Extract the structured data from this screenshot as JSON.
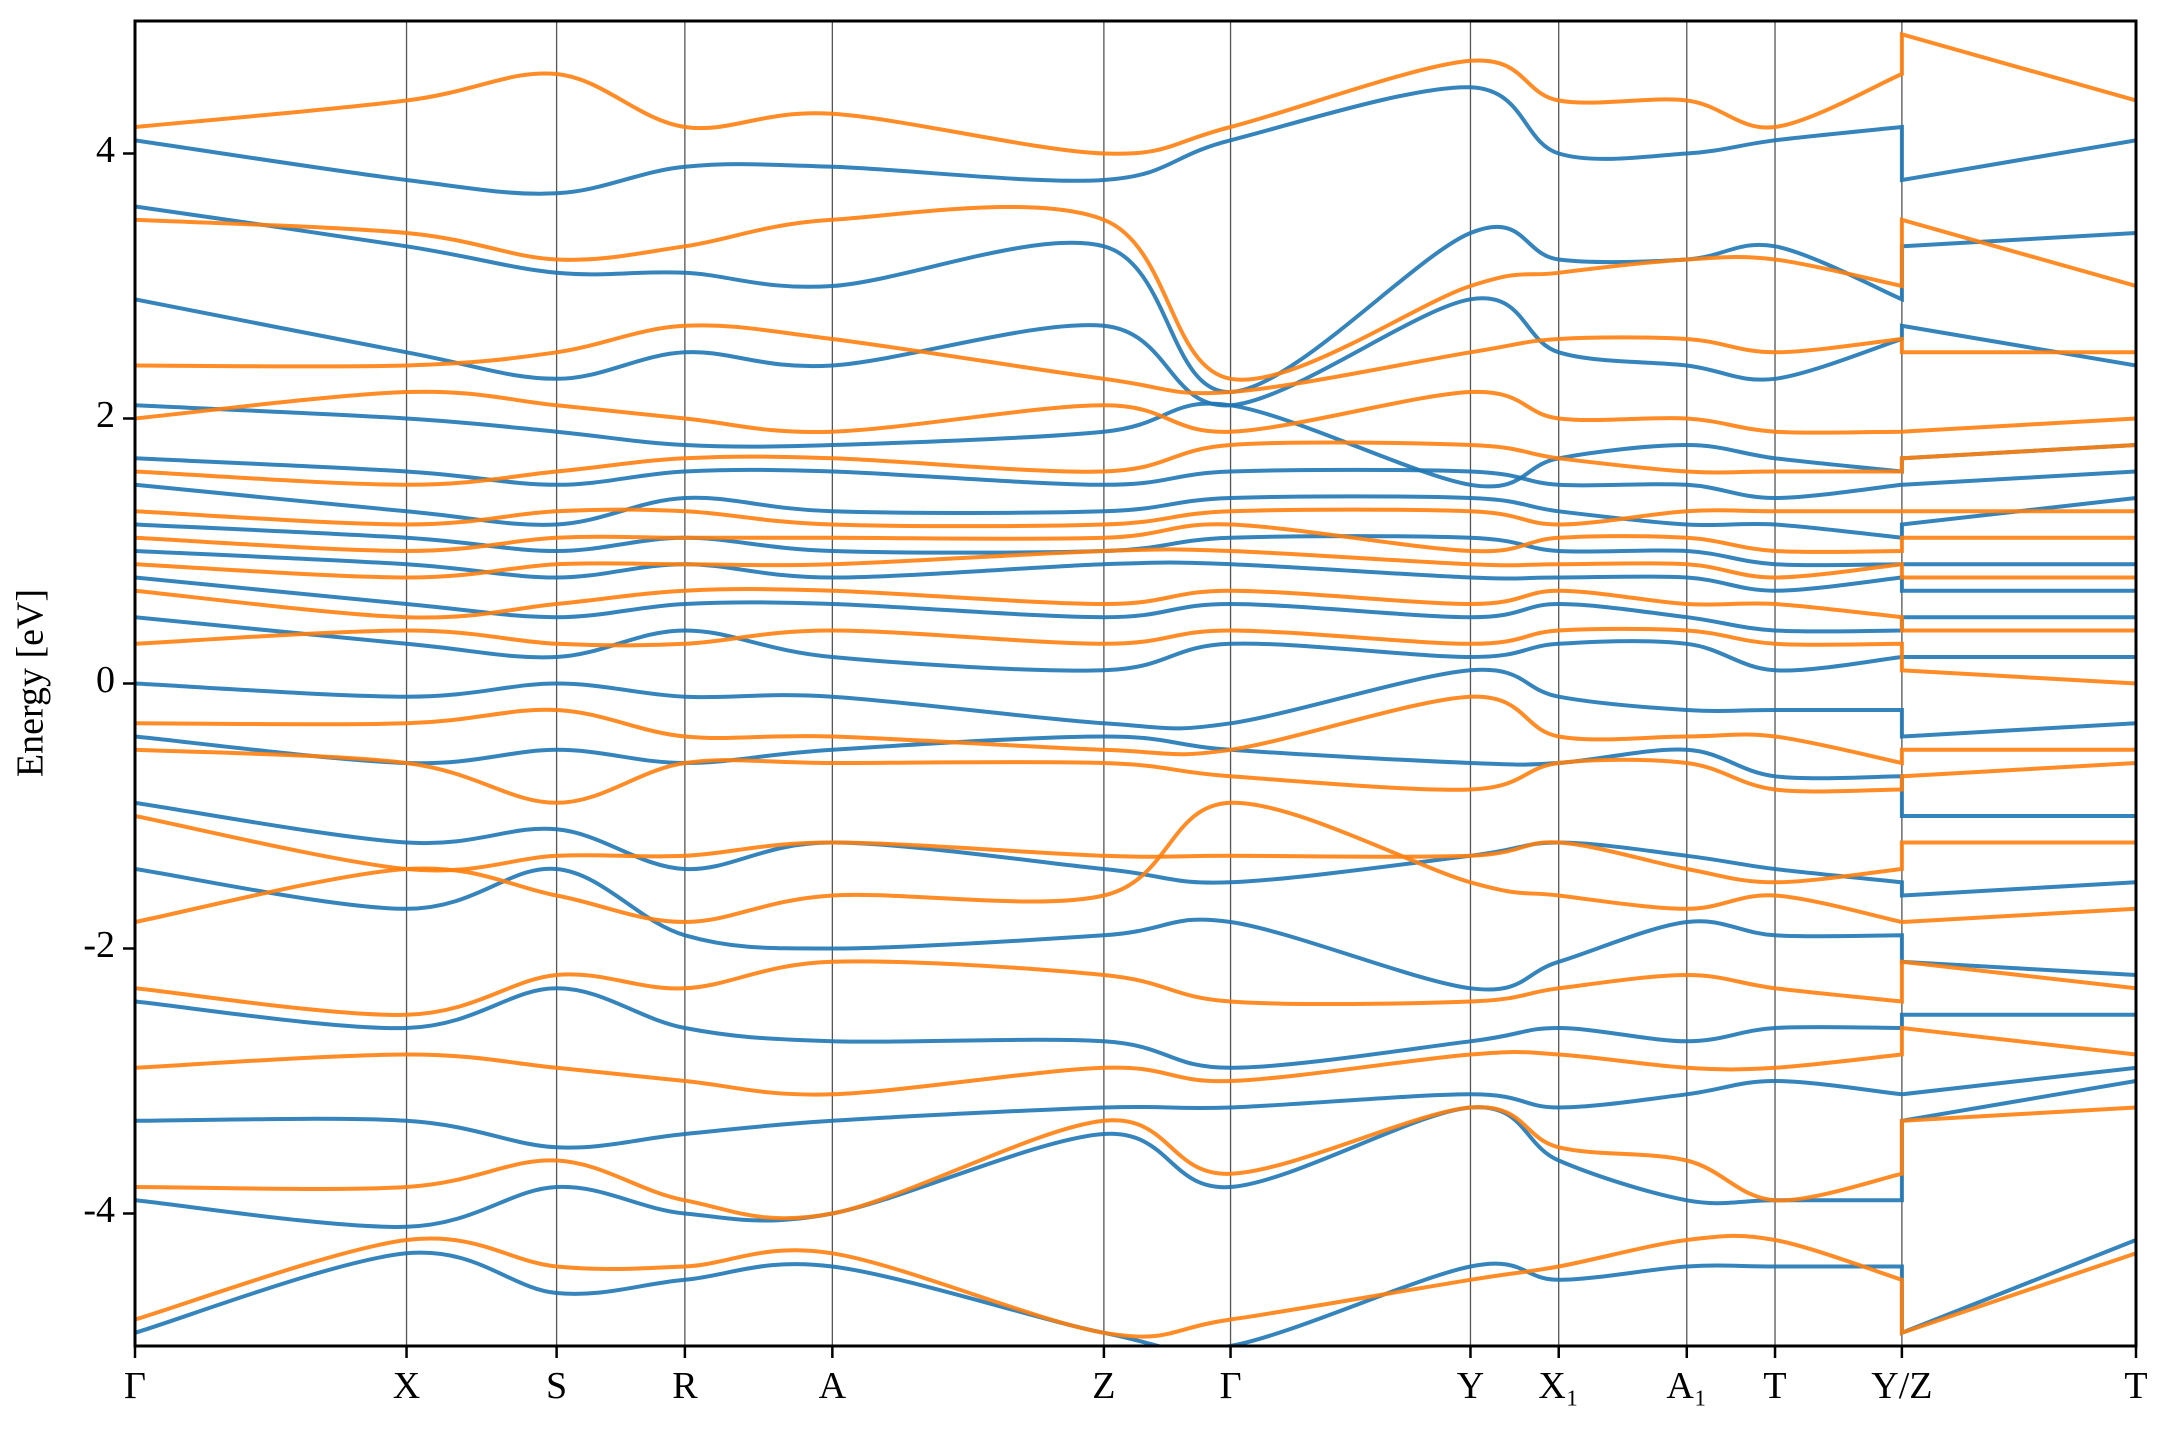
{
  "chart_data": {
    "type": "line",
    "ylabel": "Energy [eV]",
    "xlim": [
      0,
      1
    ],
    "ylim": [
      -5,
      5
    ],
    "yticks": [
      -4,
      -2,
      0,
      2,
      4
    ],
    "xticks": [
      {
        "value": 0,
        "label": "Γ"
      },
      {
        "value": 0.1357,
        "label": "X"
      },
      {
        "value": 0.2107,
        "label": "S"
      },
      {
        "value": 0.2748,
        "label": "R"
      },
      {
        "value": 0.3485,
        "label": "A"
      },
      {
        "value": 0.4842,
        "label": "Z"
      },
      {
        "value": 0.5475,
        "label": "Γ"
      },
      {
        "value": 0.6674,
        "label": "Y"
      },
      {
        "value": 0.7115,
        "label": "X₁"
      },
      {
        "value": 0.7755,
        "label": "A₁"
      },
      {
        "value": 0.8196,
        "label": "T"
      },
      {
        "value": 0.883,
        "label": "Y/Z"
      },
      {
        "value": 1,
        "label": "T"
      }
    ],
    "grid": true,
    "x": [
      0,
      0.1357,
      0.2107,
      0.2748,
      0.3485,
      0.4842,
      0.5475,
      0.6674,
      0.7115,
      0.7755,
      0.8196,
      0.883,
      0.883,
      1
    ],
    "series": [
      {
        "color": "#1f77b4",
        "bands": [
          [
            -4.9,
            -4.3,
            -4.6,
            -4.5,
            -4.4,
            -4.9,
            -5.0,
            -4.4,
            -4.5,
            -4.4,
            -4.4,
            -4.4,
            -4.9,
            -4.2
          ],
          [
            -3.9,
            -4.1,
            -3.8,
            -4.0,
            -4.0,
            -3.4,
            -3.8,
            -3.2,
            -3.6,
            -3.9,
            -3.9,
            -3.9,
            -3.3,
            -3.0
          ],
          [
            -3.3,
            -3.3,
            -3.5,
            -3.4,
            -3.3,
            -3.2,
            -3.2,
            -3.1,
            -3.2,
            -3.1,
            -3.0,
            -3.1,
            -3.1,
            -2.9
          ],
          [
            -2.4,
            -2.6,
            -2.3,
            -2.6,
            -2.7,
            -2.7,
            -2.9,
            -2.7,
            -2.6,
            -2.7,
            -2.6,
            -2.6,
            -2.5,
            -2.5
          ],
          [
            -1.4,
            -1.7,
            -1.4,
            -1.9,
            -2.0,
            -1.9,
            -1.8,
            -2.3,
            -2.1,
            -1.8,
            -1.9,
            -1.9,
            -2.1,
            -2.2
          ],
          [
            -0.9,
            -1.2,
            -1.1,
            -1.4,
            -1.2,
            -1.4,
            -1.5,
            -1.3,
            -1.2,
            -1.3,
            -1.4,
            -1.5,
            -1.6,
            -1.5
          ],
          [
            -0.4,
            -0.6,
            -0.5,
            -0.6,
            -0.5,
            -0.4,
            -0.5,
            -0.6,
            -0.6,
            -0.5,
            -0.7,
            -0.7,
            -1.0,
            -1.0
          ],
          [
            0.0,
            -0.1,
            0.0,
            -0.1,
            -0.1,
            -0.3,
            -0.3,
            0.1,
            -0.1,
            -0.2,
            -0.2,
            -0.2,
            -0.4,
            -0.3
          ],
          [
            0.5,
            0.3,
            0.2,
            0.4,
            0.2,
            0.1,
            0.3,
            0.2,
            0.3,
            0.3,
            0.1,
            0.2,
            0.2,
            0.2
          ],
          [
            0.8,
            0.6,
            0.5,
            0.6,
            0.6,
            0.5,
            0.6,
            0.5,
            0.6,
            0.5,
            0.4,
            0.4,
            0.5,
            0.5
          ],
          [
            1.0,
            0.9,
            0.8,
            0.9,
            0.8,
            0.9,
            0.9,
            0.8,
            0.8,
            0.8,
            0.7,
            0.8,
            0.7,
            0.7
          ],
          [
            1.2,
            1.1,
            1.0,
            1.1,
            1.0,
            1.0,
            1.1,
            1.1,
            1.0,
            1.0,
            0.9,
            0.9,
            0.9,
            0.9
          ],
          [
            1.5,
            1.3,
            1.2,
            1.4,
            1.3,
            1.3,
            1.4,
            1.4,
            1.3,
            1.2,
            1.2,
            1.1,
            1.2,
            1.4
          ],
          [
            1.7,
            1.6,
            1.5,
            1.6,
            1.6,
            1.5,
            1.6,
            1.6,
            1.5,
            1.5,
            1.4,
            1.5,
            1.5,
            1.6
          ],
          [
            2.1,
            2.0,
            1.9,
            1.8,
            1.8,
            1.9,
            2.1,
            1.5,
            1.7,
            1.8,
            1.7,
            1.6,
            1.7,
            1.8
          ],
          [
            2.9,
            2.5,
            2.3,
            2.5,
            2.4,
            2.7,
            2.1,
            2.9,
            2.5,
            2.4,
            2.3,
            2.6,
            2.7,
            2.4
          ],
          [
            3.6,
            3.3,
            3.1,
            3.1,
            3.0,
            3.3,
            2.2,
            3.4,
            3.2,
            3.2,
            3.3,
            2.9,
            3.3,
            3.4
          ],
          [
            4.1,
            3.8,
            3.7,
            3.9,
            3.9,
            3.8,
            4.1,
            4.5,
            4.0,
            4.0,
            4.1,
            4.2,
            3.8,
            4.1
          ]
        ]
      },
      {
        "color": "#ff7f0e",
        "bands": [
          [
            -4.8,
            -4.2,
            -4.4,
            -4.4,
            -4.3,
            -4.9,
            -4.8,
            -4.5,
            -4.4,
            -4.2,
            -4.2,
            -4.5,
            -4.9,
            -4.3
          ],
          [
            -3.8,
            -3.8,
            -3.6,
            -3.9,
            -4.0,
            -3.3,
            -3.7,
            -3.2,
            -3.5,
            -3.6,
            -3.9,
            -3.7,
            -3.3,
            -3.2
          ],
          [
            -2.9,
            -2.8,
            -2.9,
            -3.0,
            -3.1,
            -2.9,
            -3.0,
            -2.8,
            -2.8,
            -2.9,
            -2.9,
            -2.8,
            -2.6,
            -2.8
          ],
          [
            -2.3,
            -2.5,
            -2.2,
            -2.3,
            -2.1,
            -2.2,
            -2.4,
            -2.4,
            -2.3,
            -2.2,
            -2.3,
            -2.4,
            -2.1,
            -2.3
          ],
          [
            -1.8,
            -1.4,
            -1.6,
            -1.8,
            -1.6,
            -1.6,
            -0.9,
            -1.5,
            -1.6,
            -1.7,
            -1.6,
            -1.8,
            -1.8,
            -1.7
          ],
          [
            -1.0,
            -1.4,
            -1.3,
            -1.3,
            -1.2,
            -1.3,
            -1.3,
            -1.3,
            -1.2,
            -1.4,
            -1.5,
            -1.4,
            -1.2,
            -1.2
          ],
          [
            -0.5,
            -0.6,
            -0.9,
            -0.6,
            -0.6,
            -0.6,
            -0.7,
            -0.8,
            -0.6,
            -0.6,
            -0.8,
            -0.8,
            -0.7,
            -0.6
          ],
          [
            -0.3,
            -0.3,
            -0.2,
            -0.4,
            -0.4,
            -0.5,
            -0.5,
            -0.1,
            -0.4,
            -0.4,
            -0.4,
            -0.6,
            -0.5,
            -0.5
          ],
          [
            0.3,
            0.4,
            0.3,
            0.3,
            0.4,
            0.3,
            0.4,
            0.3,
            0.4,
            0.4,
            0.3,
            0.3,
            0.1,
            0.0
          ],
          [
            0.7,
            0.5,
            0.6,
            0.7,
            0.7,
            0.6,
            0.7,
            0.6,
            0.7,
            0.6,
            0.6,
            0.5,
            0.4,
            0.4
          ],
          [
            0.9,
            0.8,
            0.9,
            0.9,
            0.9,
            1.0,
            1.0,
            0.9,
            0.9,
            0.9,
            0.8,
            0.9,
            0.8,
            0.8
          ],
          [
            1.1,
            1.0,
            1.1,
            1.1,
            1.1,
            1.1,
            1.2,
            1.0,
            1.1,
            1.1,
            1.0,
            1.0,
            1.1,
            1.1
          ],
          [
            1.3,
            1.2,
            1.3,
            1.3,
            1.2,
            1.2,
            1.3,
            1.3,
            1.2,
            1.3,
            1.3,
            1.3,
            1.3,
            1.3
          ],
          [
            1.6,
            1.5,
            1.6,
            1.7,
            1.7,
            1.6,
            1.8,
            1.8,
            1.7,
            1.6,
            1.6,
            1.6,
            1.7,
            1.8
          ],
          [
            2.0,
            2.2,
            2.1,
            2.0,
            1.9,
            2.1,
            1.9,
            2.2,
            2.0,
            2.0,
            1.9,
            1.9,
            1.9,
            2.0
          ],
          [
            2.4,
            2.4,
            2.5,
            2.7,
            2.6,
            2.3,
            2.2,
            2.5,
            2.6,
            2.6,
            2.5,
            2.6,
            2.5,
            2.5
          ],
          [
            3.5,
            3.4,
            3.2,
            3.3,
            3.5,
            3.5,
            2.3,
            3.0,
            3.1,
            3.2,
            3.2,
            3.0,
            3.5,
            3.0
          ],
          [
            4.2,
            4.4,
            4.6,
            4.2,
            4.3,
            4.0,
            4.2,
            4.7,
            4.4,
            4.4,
            4.2,
            4.6,
            4.9,
            4.4
          ]
        ]
      }
    ]
  }
}
